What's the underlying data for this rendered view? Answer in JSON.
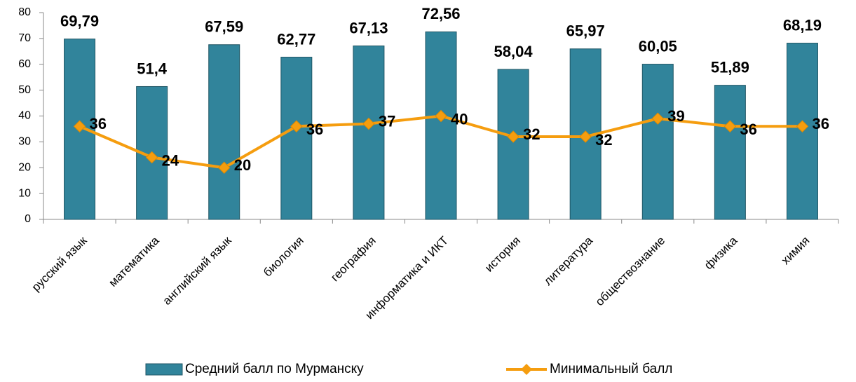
{
  "chart_data": {
    "type": "bar",
    "categories": [
      "русский язык",
      "математика",
      "английский язык",
      "биология",
      "география",
      "информатика и ИКТ",
      "история",
      "литература",
      "обществознание",
      "физика",
      "химия"
    ],
    "series": [
      {
        "name": "Средний балл по Мурманску",
        "type": "bar",
        "color": "#31849b",
        "values": [
          69.79,
          51.4,
          67.59,
          62.77,
          67.13,
          72.56,
          58.04,
          65.97,
          60.05,
          51.89,
          68.19
        ],
        "value_labels": [
          "69,79",
          "51,4",
          "67,59",
          "62,77",
          "67,13",
          "72,56",
          "58,04",
          "65,97",
          "60,05",
          "51,89",
          "68,19"
        ]
      },
      {
        "name": "Минимальный балл",
        "type": "line",
        "color": "#f59d0f",
        "values": [
          36,
          24,
          20,
          36,
          37,
          40,
          32,
          32,
          39,
          36,
          36
        ]
      }
    ],
    "ylim": [
      0,
      80
    ],
    "yticks": [
      0,
      10,
      20,
      30,
      40,
      50,
      60,
      70,
      80
    ],
    "grid": false,
    "legend": "bottom"
  }
}
